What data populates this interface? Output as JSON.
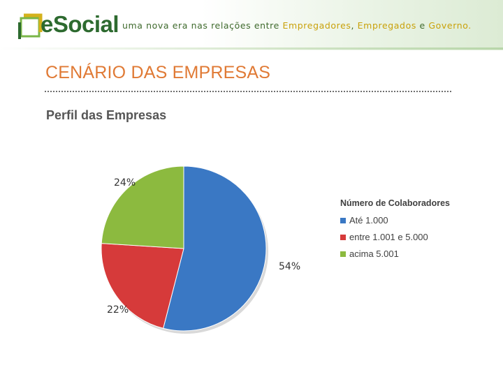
{
  "header": {
    "logo_text": "eSocial",
    "tagline_prefix": "uma nova era nas relações entre ",
    "tagline_highlight_1": "Empregadores",
    "tagline_sep_1": ", ",
    "tagline_highlight_2": "Empregados",
    "tagline_sep_2": " e ",
    "tagline_highlight_3": "Governo",
    "tagline_suffix": "."
  },
  "page": {
    "title": "CENÁRIO DAS EMPRESAS",
    "section_title": "Perfil das Empresas"
  },
  "colors": {
    "brand_green": "#2d6a2f",
    "title_orange": "#e07a35",
    "highlight_gold": "#c9a10a"
  },
  "chart_data": {
    "type": "pie",
    "title": "",
    "legend_title": "Número de Colaboradores",
    "legend_position": "right",
    "categories": [
      "Até 1.000",
      "entre 1.001 e 5.000",
      "acima 5.001"
    ],
    "values": [
      54,
      22,
      24
    ],
    "labels": [
      "54%",
      "22%",
      "24%"
    ],
    "colors": [
      "#3a78c4",
      "#d63a3a",
      "#8cba3f"
    ]
  }
}
